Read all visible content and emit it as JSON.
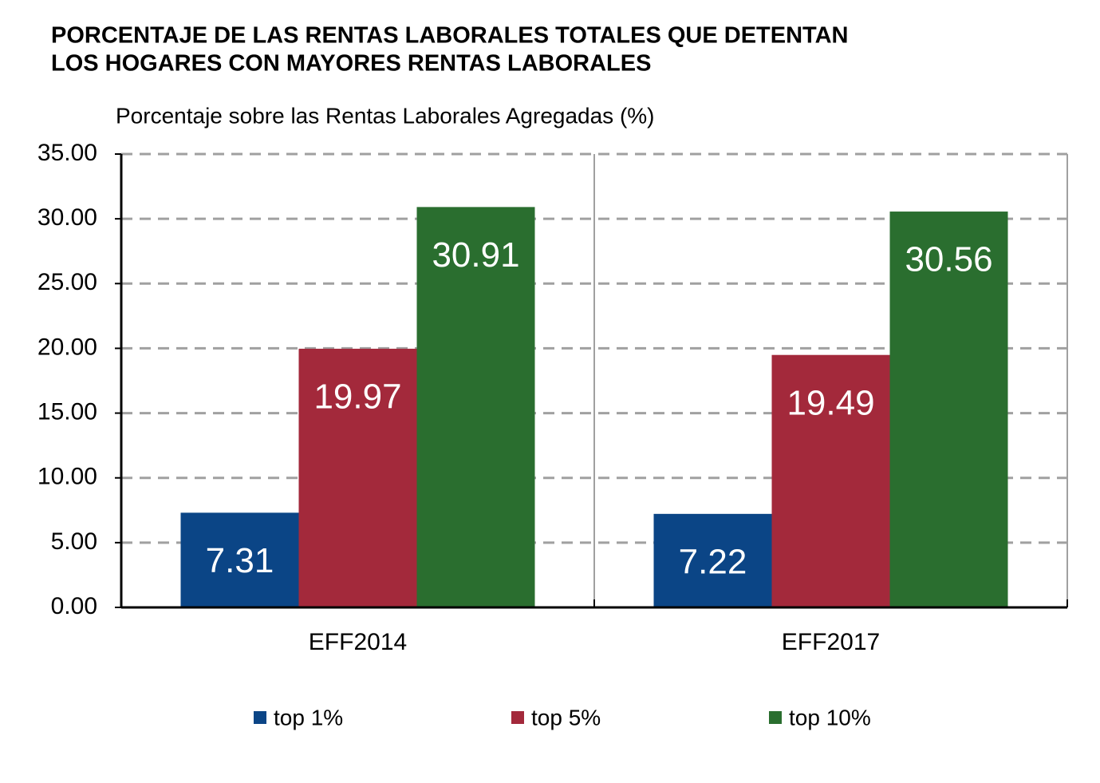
{
  "chart_data": {
    "type": "bar",
    "title": [
      "PORCENTAJE DE LAS RENTAS LABORALES TOTALES QUE DETENTAN",
      "LOS HOGARES CON MAYORES RENTAS LABORALES"
    ],
    "y_label": "Porcentaje sobre las Rentas Laborales Agregadas (%)",
    "categories": [
      "EFF2014",
      "EFF2017"
    ],
    "series": [
      {
        "name": "top 1%",
        "color": "#0b4586",
        "values": [
          7.31,
          7.22
        ]
      },
      {
        "name": "top 5%",
        "color": "#a3293b",
        "values": [
          19.97,
          19.49
        ]
      },
      {
        "name": "top 10%",
        "color": "#2a6e2f",
        "values": [
          30.91,
          30.56
        ]
      }
    ],
    "ylim": [
      0,
      35
    ],
    "yticks": [
      {
        "value": 0,
        "label": "0.00"
      },
      {
        "value": 5,
        "label": "5.00"
      },
      {
        "value": 10,
        "label": "10.00"
      },
      {
        "value": 15,
        "label": "15.00"
      },
      {
        "value": 20,
        "label": "20.00"
      },
      {
        "value": 25,
        "label": "25.00"
      },
      {
        "value": 30,
        "label": "30.00"
      },
      {
        "value": 35,
        "label": "35.00"
      }
    ],
    "grid": true,
    "legend": "bottom"
  }
}
